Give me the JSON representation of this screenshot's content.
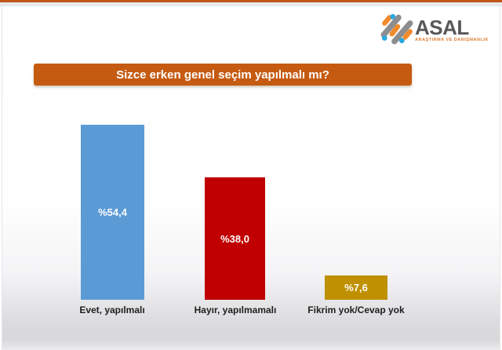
{
  "brand": {
    "name": "ASAL",
    "tagline": "ARAŞTIRMA VE DANIŞMANLIK",
    "logo_colors": {
      "gray": "#8d8d90",
      "orange": "#f08a2c",
      "blue": "#29a8df"
    }
  },
  "accent_bar_color": "#c0571a",
  "question_banner": {
    "text": "Sizce erken genel seçim yapılmalı mı?",
    "background": "#c55a11",
    "text_color": "#ffffff"
  },
  "chart_data": {
    "type": "bar",
    "title": "Sizce erken genel seçim yapılmalı mı?",
    "categories": [
      "Evet, yapılmalı",
      "Hayır, yapılmamalı",
      "Fikrim yok/Cevap yok"
    ],
    "values": [
      54.4,
      38.0,
      7.6
    ],
    "value_labels": [
      "%54,4",
      "%38,0",
      "%7,6"
    ],
    "bar_colors": [
      "#5b9bd5",
      "#c00000",
      "#bf9000"
    ],
    "value_label_position": "inside-center",
    "value_label_color": "#ffffff",
    "xlabel": "",
    "ylabel": "",
    "ylim": [
      0,
      60
    ],
    "grid": false,
    "legend": false
  }
}
